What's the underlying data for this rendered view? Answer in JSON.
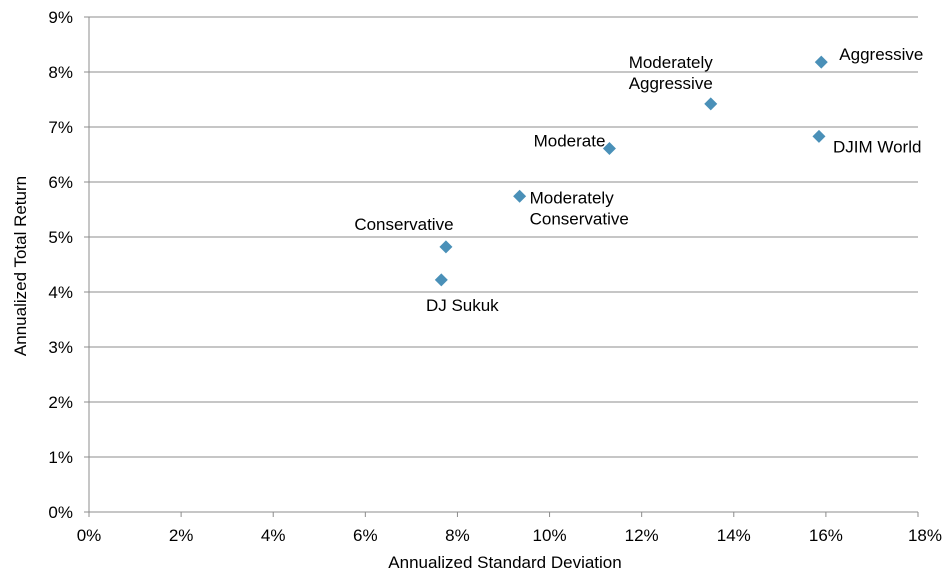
{
  "chart_data": {
    "type": "scatter",
    "title": "",
    "xlabel": "Annualized Standard Deviation",
    "ylabel": "Annualized Total Return",
    "xlim": [
      0,
      18
    ],
    "ylim": [
      0,
      9
    ],
    "x_ticks": [
      "0%",
      "2%",
      "4%",
      "6%",
      "8%",
      "10%",
      "12%",
      "14%",
      "16%",
      "18%"
    ],
    "y_ticks": [
      "0%",
      "1%",
      "2%",
      "3%",
      "4%",
      "5%",
      "6%",
      "7%",
      "8%",
      "9%"
    ],
    "grid": "horizontal",
    "legend": "none",
    "marker": "diamond",
    "marker_color": "#4a90b8",
    "points": [
      {
        "label": [
          "Aggressive"
        ],
        "x": 15.9,
        "y": 8.18
      },
      {
        "label": [
          "Moderately",
          "Aggressive"
        ],
        "x": 13.5,
        "y": 7.42
      },
      {
        "label": [
          "DJIM World"
        ],
        "x": 15.85,
        "y": 6.83
      },
      {
        "label": [
          "Moderate"
        ],
        "x": 11.3,
        "y": 6.61
      },
      {
        "label": [
          "Moderately",
          "Conservative"
        ],
        "x": 9.35,
        "y": 5.74
      },
      {
        "label": [
          "Conservative"
        ],
        "x": 7.75,
        "y": 4.82
      },
      {
        "label": [
          "DJ Sukuk"
        ],
        "x": 7.65,
        "y": 4.22
      }
    ]
  }
}
